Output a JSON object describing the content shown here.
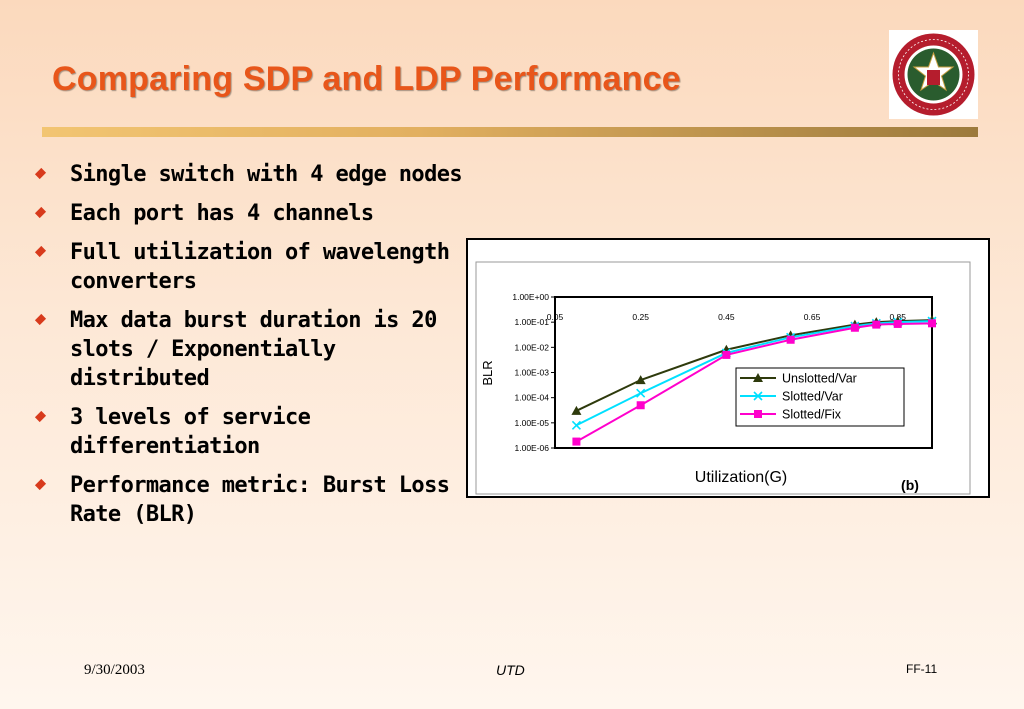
{
  "slide": {
    "title": "Comparing SDP and LDP Performance",
    "bullets": [
      "Single switch with 4 edge nodes",
      "Each port has 4 channels",
      "Full utilization of wavelength converters",
      "Max data burst duration is 20 slots / Exponentially distributed",
      "3 levels of service differentiation",
      "Performance metric: Burst Loss Rate (BLR)"
    ],
    "logo_text": "THE UNIVERSITY OF TEXAS AT DALLAS",
    "footer": {
      "date": "9/30/2003",
      "center": "UTD",
      "page": "FF-11"
    },
    "colors": {
      "title": "#e8561a",
      "bullet": "#d83a1c"
    }
  },
  "chart_data": {
    "type": "line",
    "title": "",
    "xlabel": "Utilization(G)",
    "ylabel": "BLR",
    "panel_label": "(b)",
    "x_ticks": [
      "0.05",
      "0.25",
      "0.45",
      "0.65",
      "0.85"
    ],
    "y_ticks": [
      "1.00E+00",
      "1.00E-01",
      "1.00E-02",
      "1.00E-03",
      "1.00E-04",
      "1.00E-05",
      "1.00E-06"
    ],
    "y_scale": "log",
    "ylim": [
      1e-06,
      1
    ],
    "xlim": [
      0.05,
      0.93
    ],
    "x": [
      0.1,
      0.25,
      0.45,
      0.6,
      0.75,
      0.8,
      0.85,
      0.93
    ],
    "series": [
      {
        "name": "Unslotted/Var",
        "color": "#2e3a0c",
        "marker": "triangle",
        "values": [
          3e-05,
          0.0005,
          0.008,
          0.03,
          0.08,
          0.1,
          0.11,
          0.12
        ]
      },
      {
        "name": "Slotted/Var",
        "color": "#00e0ff",
        "marker": "x",
        "values": [
          8e-06,
          0.00015,
          0.006,
          0.025,
          0.07,
          0.09,
          0.1,
          0.11
        ]
      },
      {
        "name": "Slotted/Fix",
        "color": "#ff00cc",
        "marker": "square",
        "values": [
          1.8e-06,
          5e-05,
          0.005,
          0.02,
          0.06,
          0.08,
          0.085,
          0.09
        ]
      }
    ],
    "grid": false,
    "legend_position": "right"
  }
}
